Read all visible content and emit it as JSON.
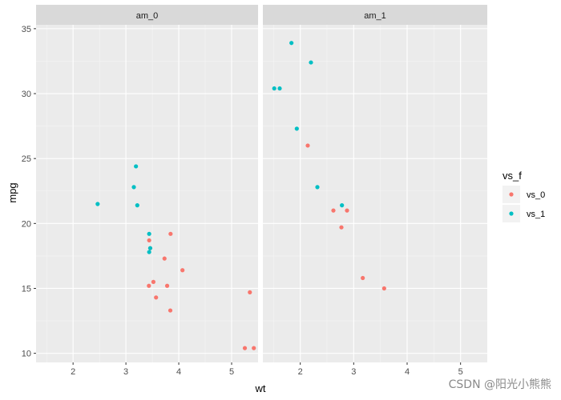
{
  "chart_data": {
    "type": "scatter",
    "facet_var": "am",
    "panels": [
      {
        "label": "am_0",
        "series": [
          {
            "name": "vs_0",
            "color": "#F8766D",
            "points": [
              [
                3.44,
                18.7
              ],
              [
                3.46,
                18.1
              ],
              [
                3.57,
                14.3
              ],
              [
                4.07,
                16.4
              ],
              [
                3.73,
                17.3
              ],
              [
                3.78,
                15.2
              ],
              [
                5.25,
                10.4
              ],
              [
                5.42,
                10.4
              ],
              [
                5.345,
                14.7
              ],
              [
                3.52,
                15.5
              ],
              [
                3.435,
                15.2
              ],
              [
                3.84,
                13.3
              ],
              [
                3.845,
                19.2
              ]
            ]
          },
          {
            "name": "vs_1",
            "color": "#00BFC4",
            "points": [
              [
                2.465,
                21.5
              ],
              [
                3.215,
                21.4
              ],
              [
                3.19,
                24.4
              ],
              [
                3.15,
                22.8
              ],
              [
                3.44,
                19.2
              ],
              [
                3.44,
                17.8
              ],
              [
                3.46,
                18.1
              ]
            ]
          }
        ]
      },
      {
        "label": "am_1",
        "series": [
          {
            "name": "vs_0",
            "color": "#F8766D",
            "points": [
              [
                2.62,
                21.0
              ],
              [
                2.875,
                21.0
              ],
              [
                2.14,
                26.0
              ],
              [
                3.17,
                15.8
              ],
              [
                2.77,
                19.7
              ],
              [
                3.57,
                15.0
              ]
            ]
          },
          {
            "name": "vs_1",
            "color": "#00BFC4",
            "points": [
              [
                2.32,
                22.8
              ],
              [
                2.2,
                32.4
              ],
              [
                1.615,
                30.4
              ],
              [
                1.835,
                33.9
              ],
              [
                1.935,
                27.3
              ],
              [
                1.513,
                30.4
              ],
              [
                2.78,
                21.4
              ]
            ]
          }
        ]
      }
    ],
    "xlabel": "wt",
    "ylabel": "mpg",
    "xlim": [
      1.3,
      5.5
    ],
    "ylim": [
      9.3,
      35.3
    ],
    "xticks": [
      2,
      3,
      4,
      5
    ],
    "yticks": [
      10,
      15,
      20,
      25,
      30,
      35
    ],
    "grid": true,
    "legend": {
      "title": "vs_f",
      "placement": "right",
      "entries": [
        {
          "label": "vs_0",
          "color": "#F8766D"
        },
        {
          "label": "vs_1",
          "color": "#00BFC4"
        }
      ]
    }
  },
  "watermark": "CSDN @阳光小熊熊"
}
